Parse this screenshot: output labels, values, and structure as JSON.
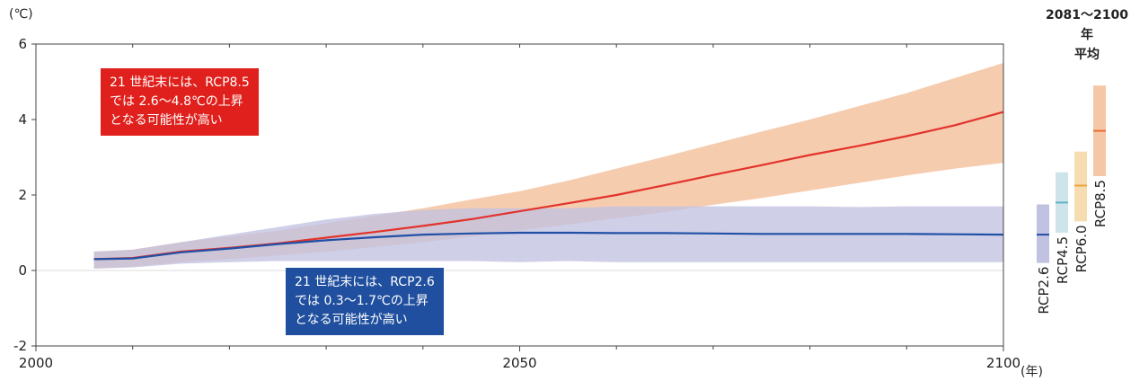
{
  "chart_data": {
    "type": "line",
    "x_unit_label": "(年)",
    "y_unit_label": "(℃)",
    "xlim": [
      2000,
      2100
    ],
    "ylim": [
      -2,
      6
    ],
    "x_ticks": [
      2000,
      2050,
      2100
    ],
    "y_ticks": [
      6,
      4,
      2,
      0,
      -2
    ],
    "series": [
      {
        "key": "rcp85",
        "color": "#e2332b",
        "band_color": "#f5c7a6",
        "x": [
          2006,
          2010,
          2015,
          2020,
          2025,
          2030,
          2035,
          2040,
          2045,
          2050,
          2055,
          2060,
          2065,
          2070,
          2075,
          2080,
          2085,
          2090,
          2095,
          2100
        ],
        "y": [
          0.3,
          0.33,
          0.5,
          0.6,
          0.72,
          0.87,
          1.02,
          1.18,
          1.36,
          1.57,
          1.78,
          2.0,
          2.26,
          2.53,
          2.79,
          3.06,
          3.3,
          3.56,
          3.85,
          4.2
        ],
        "lower": [
          0.05,
          0.1,
          0.22,
          0.3,
          0.4,
          0.5,
          0.62,
          0.75,
          0.9,
          1.06,
          1.22,
          1.38,
          1.55,
          1.74,
          1.92,
          2.12,
          2.32,
          2.52,
          2.7,
          2.85
        ],
        "upper": [
          0.5,
          0.55,
          0.75,
          0.9,
          1.05,
          1.25,
          1.45,
          1.65,
          1.88,
          2.1,
          2.38,
          2.7,
          3.02,
          3.35,
          3.68,
          4.0,
          4.35,
          4.7,
          5.1,
          5.5
        ]
      },
      {
        "key": "rcp26",
        "color": "#2150a5",
        "band_color": "#c1c1e2",
        "x": [
          2006,
          2010,
          2015,
          2020,
          2025,
          2030,
          2035,
          2040,
          2045,
          2050,
          2055,
          2060,
          2065,
          2070,
          2075,
          2080,
          2085,
          2090,
          2095,
          2100
        ],
        "y": [
          0.3,
          0.32,
          0.48,
          0.58,
          0.7,
          0.8,
          0.88,
          0.95,
          0.98,
          1.0,
          1.0,
          0.99,
          0.99,
          0.98,
          0.97,
          0.97,
          0.97,
          0.97,
          0.96,
          0.95
        ],
        "lower": [
          0.05,
          0.08,
          0.18,
          0.22,
          0.25,
          0.25,
          0.25,
          0.25,
          0.25,
          0.22,
          0.25,
          0.22,
          0.22,
          0.22,
          0.22,
          0.22,
          0.22,
          0.22,
          0.22,
          0.22
        ],
        "upper": [
          0.5,
          0.55,
          0.75,
          0.95,
          1.15,
          1.35,
          1.5,
          1.6,
          1.65,
          1.65,
          1.65,
          1.7,
          1.7,
          1.7,
          1.7,
          1.7,
          1.68,
          1.7,
          1.7,
          1.7
        ]
      }
    ],
    "period_average": {
      "title_line1": "2081～2100 年",
      "title_line2": "平均",
      "bars": [
        {
          "name": "RCP2.6",
          "low": 0.2,
          "high": 1.75,
          "mean": 0.95,
          "bar_color": "#c1c1e2",
          "mean_color": "#2150a5"
        },
        {
          "name": "RCP4.5",
          "low": 1.0,
          "high": 2.6,
          "mean": 1.8,
          "bar_color": "#cde5ea",
          "mean_color": "#62b3c3"
        },
        {
          "name": "RCP6.0",
          "low": 1.3,
          "high": 3.15,
          "mean": 2.25,
          "bar_color": "#f5dcb1",
          "mean_color": "#f0a441"
        },
        {
          "name": "RCP8.5",
          "low": 2.5,
          "high": 4.9,
          "mean": 3.7,
          "bar_color": "#f5c7a6",
          "mean_color": "#e8702f"
        }
      ]
    },
    "annotations": {
      "red": [
        "21 世紀末には、RCP8.5",
        "では 2.6～4.8℃の上昇",
        "となる可能性が高い"
      ],
      "blue": [
        "21 世紀末には、RCP2.6",
        "では 0.3～1.7℃の上昇",
        "となる可能性が高い"
      ]
    }
  }
}
